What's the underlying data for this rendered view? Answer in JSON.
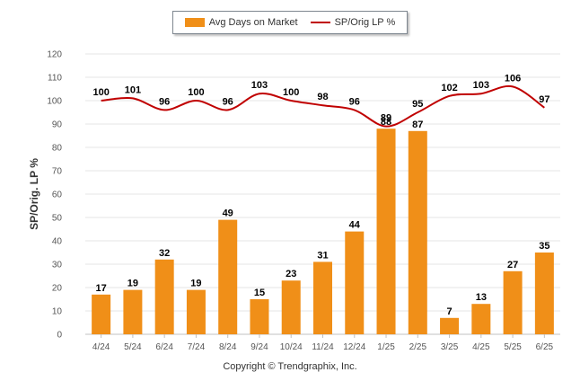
{
  "colors": {
    "bar": "#F08F18",
    "line": "#C00000",
    "grid": "#e6e6e6",
    "axis": "#c0c0c0"
  },
  "legend": {
    "bar_label": "Avg Days on Market",
    "line_label": "SP/Orig LP %"
  },
  "footer": {
    "copyright": "Copyright © Trendgraphix, Inc."
  },
  "chart_data": {
    "type": "bar",
    "ylabel": "SP/Orig. LP %",
    "xlabel": "",
    "ylim": [
      0,
      120
    ],
    "yticks": [
      0,
      10,
      20,
      30,
      40,
      50,
      60,
      70,
      80,
      90,
      100,
      110,
      120
    ],
    "grid": true,
    "legend_position": "top-center",
    "categories": [
      "4/24",
      "5/24",
      "6/24",
      "7/24",
      "8/24",
      "9/24",
      "10/24",
      "11/24",
      "12/24",
      "1/25",
      "2/25",
      "3/25",
      "4/25",
      "5/25",
      "6/25"
    ],
    "series": [
      {
        "name": "Avg Days on Market",
        "type": "bar",
        "values": [
          17,
          19,
          32,
          19,
          49,
          15,
          23,
          31,
          44,
          88,
          87,
          7,
          13,
          27,
          35
        ]
      },
      {
        "name": "SP/Orig LP %",
        "type": "line",
        "values": [
          100,
          101,
          96,
          100,
          96,
          103,
          100,
          98,
          96,
          89,
          95,
          102,
          103,
          106,
          97
        ]
      }
    ]
  }
}
